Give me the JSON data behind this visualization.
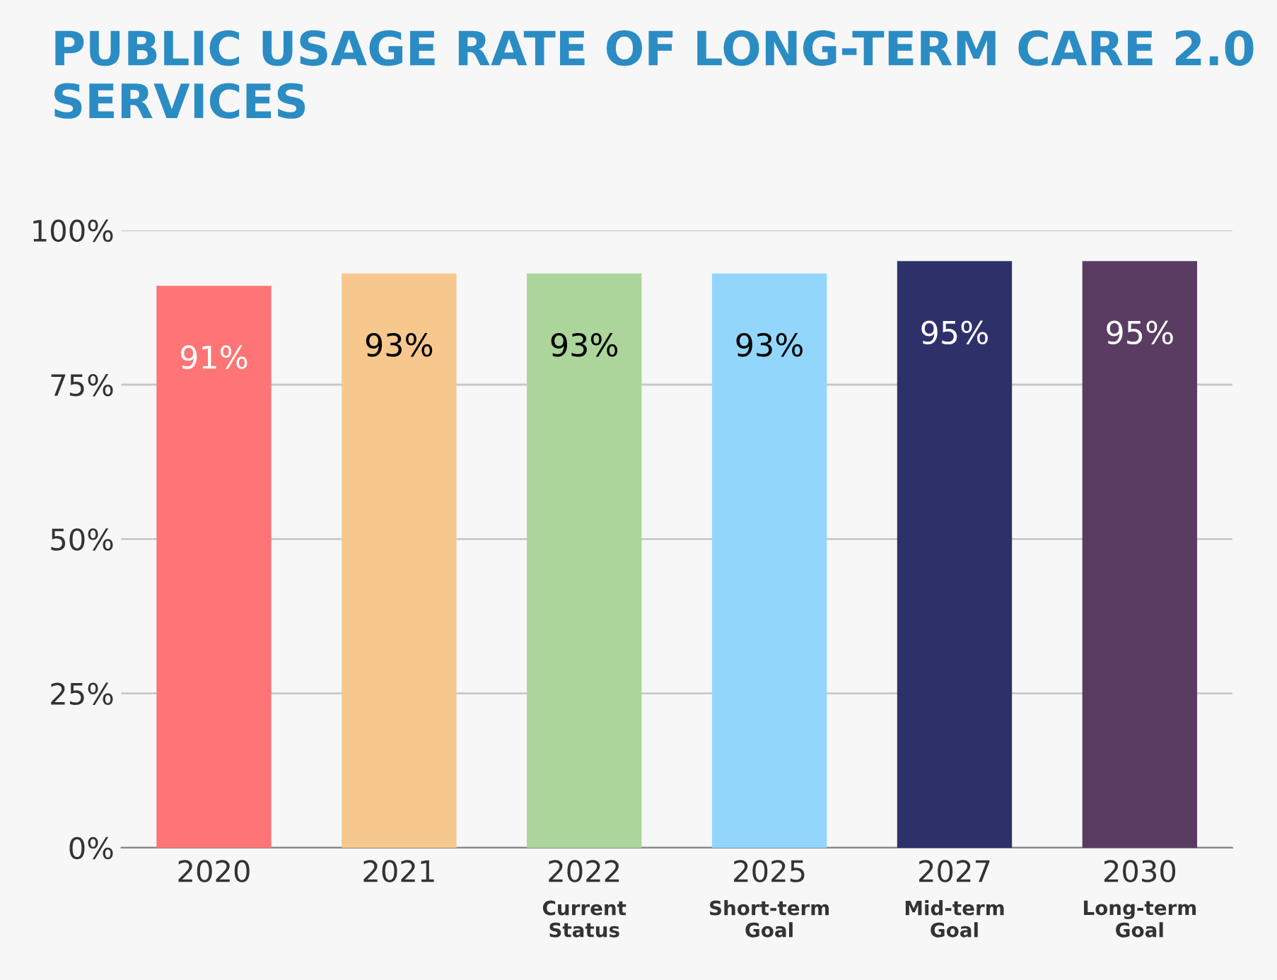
{
  "chart_data": {
    "type": "bar",
    "title": "PUBLIC USAGE RATE OF LONG-TERM CARE 2.0 SERVICES",
    "categories": [
      "2020",
      "2021",
      "2022\nCurrent\nStatus",
      "2025\nShort-term\nGoal",
      "2027\nMid-term\nGoal",
      "2030\nLong-term\nGoal"
    ],
    "values": [
      91,
      93,
      93,
      93,
      95,
      95
    ],
    "value_labels": [
      "91%",
      "93%",
      "93%",
      "93%",
      "95%",
      "95%"
    ],
    "colors": [
      "#ff7474",
      "#f6c88e",
      "#acd59b",
      "#93d6fc",
      "#2e3169",
      "#5a3c63"
    ],
    "ylim": [
      0,
      100
    ],
    "yticks": [
      {
        "value": 0,
        "label": "0%"
      },
      {
        "value": 25,
        "label": "25%"
      },
      {
        "value": 50,
        "label": "50%"
      },
      {
        "value": 75,
        "label": "75%"
      },
      {
        "value": 100,
        "label": "100%"
      }
    ],
    "grid": "y"
  }
}
